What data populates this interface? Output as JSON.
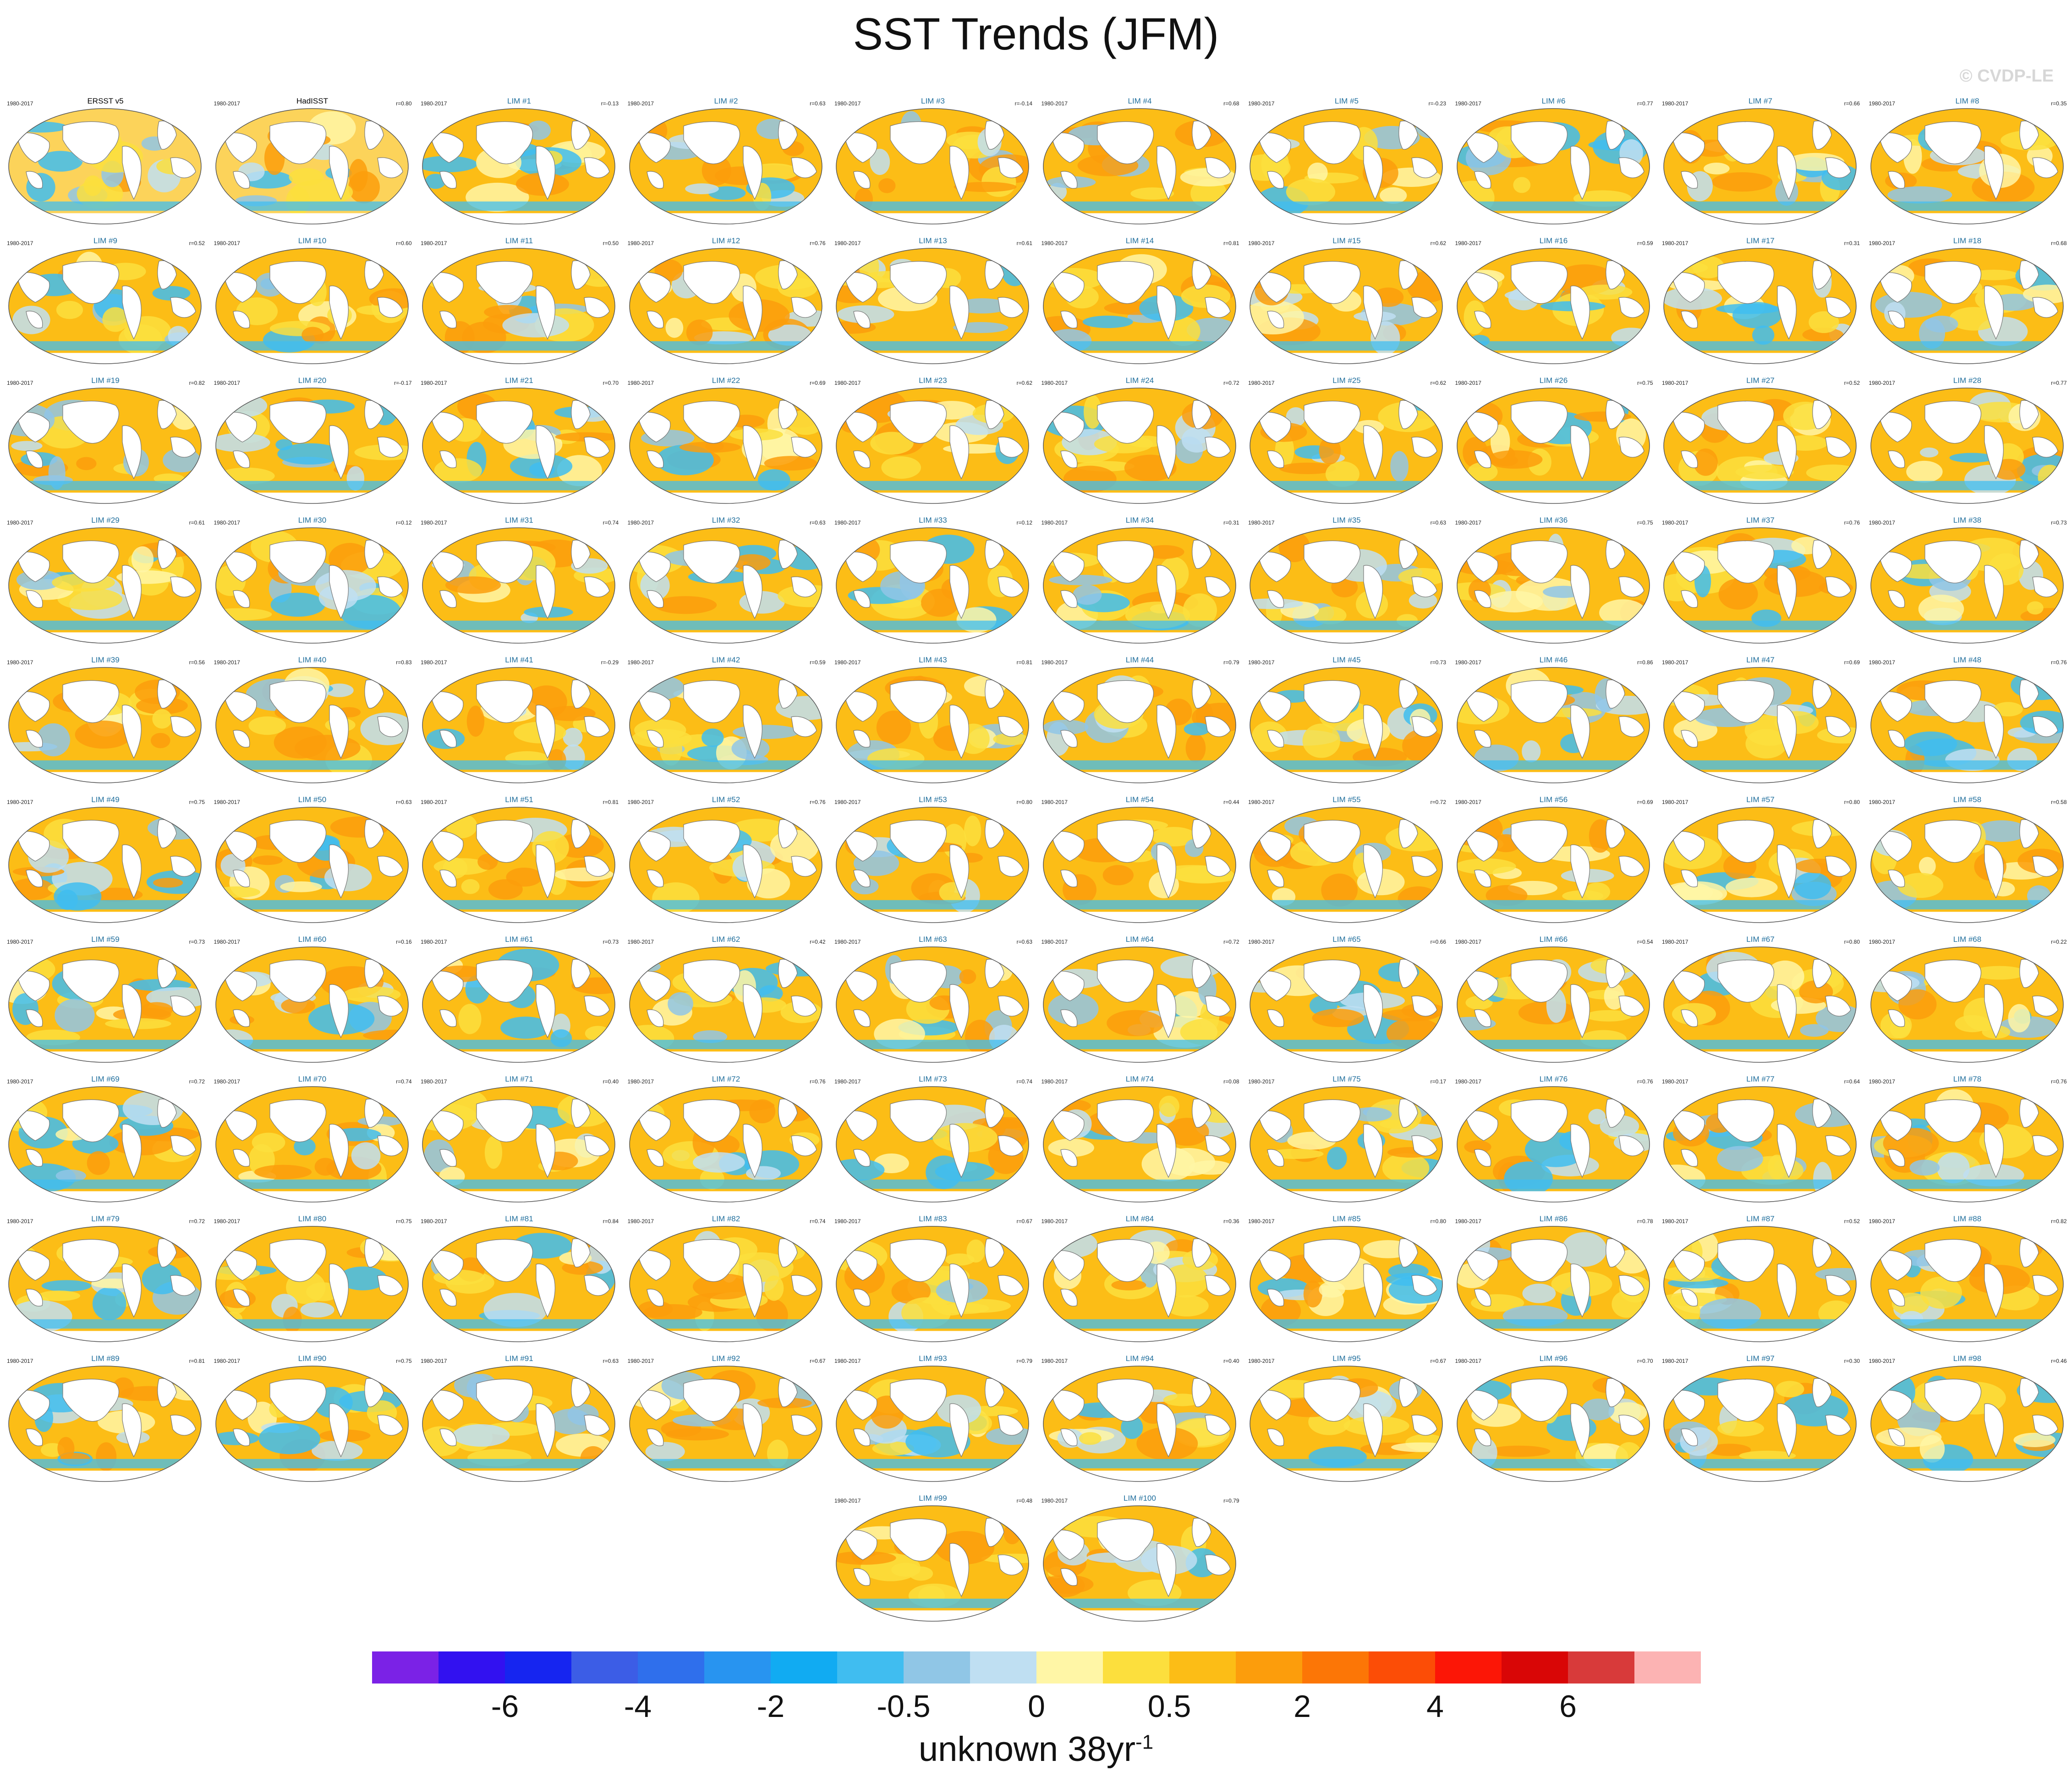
{
  "title": "SST Trends (JFM)",
  "watermark": "© CVDP-LE",
  "units": {
    "base": "unknown 38yr",
    "exponent": "-1"
  },
  "colorbar": {
    "colors": [
      "#7b22e6",
      "#3211f0",
      "#1625f0",
      "#3c5de6",
      "#2f6fec",
      "#2894f0",
      "#11abf2",
      "#40bdf0",
      "#90c6e6",
      "#bfdff2",
      "#fff6a6",
      "#fcdf3d",
      "#fcbd16",
      "#fc9d0c",
      "#fc7606",
      "#fc4d06",
      "#fc1606",
      "#d90606",
      "#d83a3a",
      "#fcb3b3"
    ],
    "tick_labels": [
      {
        "label": "-6",
        "index": 2
      },
      {
        "label": "-4",
        "index": 4
      },
      {
        "label": "-2",
        "index": 6
      },
      {
        "label": "-0.5",
        "index": 8
      },
      {
        "label": "0",
        "index": 10
      },
      {
        "label": "0.5",
        "index": 12
      },
      {
        "label": "2",
        "index": 14
      },
      {
        "label": "4",
        "index": 16
      },
      {
        "label": "6",
        "index": 18
      }
    ]
  },
  "chart_data": {
    "type": "heatmap",
    "title": "SST Trends (JFM)",
    "period": "1980-2017",
    "observations": [
      {
        "name": "ERSST v5",
        "years": "1980-2017",
        "corr": ""
      },
      {
        "name": "HadISST",
        "years": "1980-2017",
        "corr": "r=0.80"
      }
    ],
    "members": [
      {
        "name": "LIM #1",
        "corr": "r=-0.13"
      },
      {
        "name": "LIM #2",
        "corr": "r=0.63"
      },
      {
        "name": "LIM #3",
        "corr": "r=-0.14"
      },
      {
        "name": "LIM #4",
        "corr": "r=0.68"
      },
      {
        "name": "LIM #5",
        "corr": "r=-0.23"
      },
      {
        "name": "LIM #6",
        "corr": "r=0.77"
      },
      {
        "name": "LIM #7",
        "corr": "r=0.66"
      },
      {
        "name": "LIM #8",
        "corr": "r=0.35"
      },
      {
        "name": "LIM #9",
        "corr": "r=0.52"
      },
      {
        "name": "LIM #10",
        "corr": "r=0.60"
      },
      {
        "name": "LIM #11",
        "corr": "r=0.50"
      },
      {
        "name": "LIM #12",
        "corr": "r=0.76"
      },
      {
        "name": "LIM #13",
        "corr": "r=0.61"
      },
      {
        "name": "LIM #14",
        "corr": "r=0.81"
      },
      {
        "name": "LIM #15",
        "corr": "r=0.62"
      },
      {
        "name": "LIM #16",
        "corr": "r=0.59"
      },
      {
        "name": "LIM #17",
        "corr": "r=0.31"
      },
      {
        "name": "LIM #18",
        "corr": "r=0.68"
      },
      {
        "name": "LIM #19",
        "corr": "r=0.82"
      },
      {
        "name": "LIM #20",
        "corr": "r=-0.17"
      },
      {
        "name": "LIM #21",
        "corr": "r=0.70"
      },
      {
        "name": "LIM #22",
        "corr": "r=0.69"
      },
      {
        "name": "LIM #23",
        "corr": "r=0.62"
      },
      {
        "name": "LIM #24",
        "corr": "r=0.72"
      },
      {
        "name": "LIM #25",
        "corr": "r=0.62"
      },
      {
        "name": "LIM #26",
        "corr": "r=0.75"
      },
      {
        "name": "LIM #27",
        "corr": "r=0.52"
      },
      {
        "name": "LIM #28",
        "corr": "r=0.77"
      },
      {
        "name": "LIM #29",
        "corr": "r=0.61"
      },
      {
        "name": "LIM #30",
        "corr": "r=0.12"
      },
      {
        "name": "LIM #31",
        "corr": "r=0.74"
      },
      {
        "name": "LIM #32",
        "corr": "r=0.63"
      },
      {
        "name": "LIM #33",
        "corr": "r=0.12"
      },
      {
        "name": "LIM #34",
        "corr": "r=0.31"
      },
      {
        "name": "LIM #35",
        "corr": "r=0.63"
      },
      {
        "name": "LIM #36",
        "corr": "r=0.75"
      },
      {
        "name": "LIM #37",
        "corr": "r=0.76"
      },
      {
        "name": "LIM #38",
        "corr": "r=0.73"
      },
      {
        "name": "LIM #39",
        "corr": "r=0.56"
      },
      {
        "name": "LIM #40",
        "corr": "r=0.83"
      },
      {
        "name": "LIM #41",
        "corr": "r=-0.29"
      },
      {
        "name": "LIM #42",
        "corr": "r=0.59"
      },
      {
        "name": "LIM #43",
        "corr": "r=0.81"
      },
      {
        "name": "LIM #44",
        "corr": "r=0.79"
      },
      {
        "name": "LIM #45",
        "corr": "r=0.73"
      },
      {
        "name": "LIM #46",
        "corr": "r=0.86"
      },
      {
        "name": "LIM #47",
        "corr": "r=0.69"
      },
      {
        "name": "LIM #48",
        "corr": "r=0.76"
      },
      {
        "name": "LIM #49",
        "corr": "r=0.75"
      },
      {
        "name": "LIM #50",
        "corr": "r=0.63"
      },
      {
        "name": "LIM #51",
        "corr": "r=0.81"
      },
      {
        "name": "LIM #52",
        "corr": "r=0.76"
      },
      {
        "name": "LIM #53",
        "corr": "r=0.80"
      },
      {
        "name": "LIM #54",
        "corr": "r=0.44"
      },
      {
        "name": "LIM #55",
        "corr": "r=0.72"
      },
      {
        "name": "LIM #56",
        "corr": "r=0.69"
      },
      {
        "name": "LIM #57",
        "corr": "r=0.80"
      },
      {
        "name": "LIM #58",
        "corr": "r=0.58"
      },
      {
        "name": "LIM #59",
        "corr": "r=0.73"
      },
      {
        "name": "LIM #60",
        "corr": "r=0.16"
      },
      {
        "name": "LIM #61",
        "corr": "r=0.73"
      },
      {
        "name": "LIM #62",
        "corr": "r=0.42"
      },
      {
        "name": "LIM #63",
        "corr": "r=0.63"
      },
      {
        "name": "LIM #64",
        "corr": "r=0.72"
      },
      {
        "name": "LIM #65",
        "corr": "r=0.66"
      },
      {
        "name": "LIM #66",
        "corr": "r=0.54"
      },
      {
        "name": "LIM #67",
        "corr": "r=0.80"
      },
      {
        "name": "LIM #68",
        "corr": "r=0.22"
      },
      {
        "name": "LIM #69",
        "corr": "r=0.72"
      },
      {
        "name": "LIM #70",
        "corr": "r=0.74"
      },
      {
        "name": "LIM #71",
        "corr": "r=0.40"
      },
      {
        "name": "LIM #72",
        "corr": "r=0.76"
      },
      {
        "name": "LIM #73",
        "corr": "r=0.74"
      },
      {
        "name": "LIM #74",
        "corr": "r=0.08"
      },
      {
        "name": "LIM #75",
        "corr": "r=0.17"
      },
      {
        "name": "LIM #76",
        "corr": "r=0.76"
      },
      {
        "name": "LIM #77",
        "corr": "r=0.64"
      },
      {
        "name": "LIM #78",
        "corr": "r=0.76"
      },
      {
        "name": "LIM #79",
        "corr": "r=0.72"
      },
      {
        "name": "LIM #80",
        "corr": "r=0.75"
      },
      {
        "name": "LIM #81",
        "corr": "r=0.84"
      },
      {
        "name": "LIM #82",
        "corr": "r=0.74"
      },
      {
        "name": "LIM #83",
        "corr": "r=0.67"
      },
      {
        "name": "LIM #84",
        "corr": "r=0.36"
      },
      {
        "name": "LIM #85",
        "corr": "r=0.80"
      },
      {
        "name": "LIM #86",
        "corr": "r=0.78"
      },
      {
        "name": "LIM #87",
        "corr": "r=0.52"
      },
      {
        "name": "LIM #88",
        "corr": "r=0.82"
      },
      {
        "name": "LIM #89",
        "corr": "r=0.81"
      },
      {
        "name": "LIM #90",
        "corr": "r=0.75"
      },
      {
        "name": "LIM #91",
        "corr": "r=0.63"
      },
      {
        "name": "LIM #92",
        "corr": "r=0.67"
      },
      {
        "name": "LIM #93",
        "corr": "r=0.79"
      },
      {
        "name": "LIM #94",
        "corr": "r=0.40"
      },
      {
        "name": "LIM #95",
        "corr": "r=0.67"
      },
      {
        "name": "LIM #96",
        "corr": "r=0.70"
      },
      {
        "name": "LIM #97",
        "corr": "r=0.30"
      },
      {
        "name": "LIM #98",
        "corr": "r=0.46"
      },
      {
        "name": "LIM #99",
        "corr": "r=0.48"
      },
      {
        "name": "LIM #100",
        "corr": "r=0.79"
      }
    ]
  }
}
